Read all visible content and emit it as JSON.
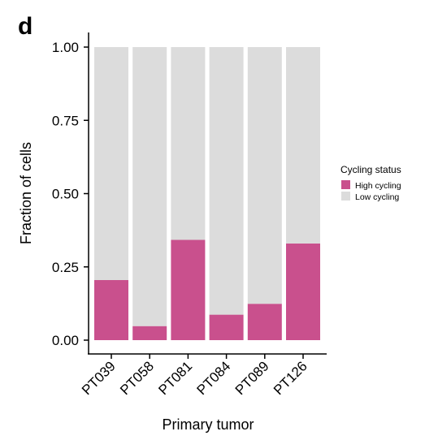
{
  "panel_label": "d",
  "chart_data": {
    "type": "bar",
    "stacked": true,
    "categories": [
      "PT039",
      "PT058",
      "PT081",
      "PT084",
      "PT089",
      "PT126"
    ],
    "series": [
      {
        "name": "High cycling",
        "color": "#C9508D",
        "values": [
          0.205,
          0.048,
          0.342,
          0.087,
          0.124,
          0.33
        ]
      },
      {
        "name": "Low cycling",
        "color": "#DCDCDC",
        "values": [
          0.795,
          0.952,
          0.658,
          0.913,
          0.876,
          0.67
        ]
      }
    ],
    "xlabel": "Primary tumor",
    "ylabel": "Fraction of cells",
    "ylim": [
      0,
      1
    ],
    "yticks": [
      "0.00",
      "0.25",
      "0.50",
      "0.75",
      "1.00"
    ],
    "ytick_values": [
      0,
      0.25,
      0.5,
      0.75,
      1
    ],
    "legend": {
      "title": "Cycling status",
      "placement": "right"
    },
    "grid": false
  }
}
